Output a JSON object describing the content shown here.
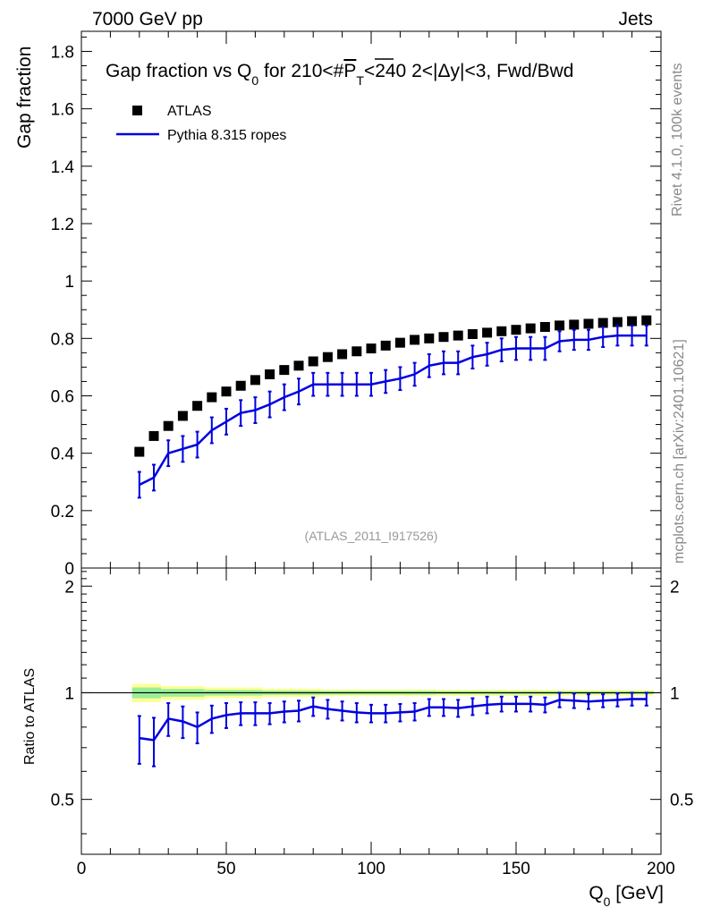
{
  "header": {
    "energy_label": "7000 GeV pp",
    "process_label": "Jets"
  },
  "side_labels": {
    "rivet": "Rivet 4.1.0,  100k events",
    "mcplots": "mcplots.cern.ch [arXiv:2401.10621]"
  },
  "chart_data": [
    {
      "type": "scatter",
      "panel": "main",
      "title_parts": {
        "a": "Gap fraction vs Q",
        "a_sub": "0",
        "b": " for 210<#",
        "b_p": "P",
        "b_sub": "T",
        "c": "<240  2<|Δy|<3, Fwd/Bwd"
      },
      "ylabel": "Gap fraction",
      "analysis_tag": "(ATLAS_2011_I917526)",
      "xlim": [
        0,
        200
      ],
      "ylim": [
        0,
        1.87
      ],
      "yticks": [
        0,
        0.2,
        0.4,
        0.6,
        0.8,
        1,
        1.2,
        1.4,
        1.6,
        1.8
      ],
      "ytick_labels": [
        "0",
        "0.2",
        "0.4",
        "0.6",
        "0.8",
        "1",
        "1.2",
        "1.4",
        "1.6",
        "1.8"
      ],
      "legend": [
        {
          "name": "ATLAS",
          "style": "square-marker",
          "color": "#000000"
        },
        {
          "name": "Pythia 8.315 ropes",
          "style": "line",
          "color": "#0000e0"
        }
      ],
      "series": [
        {
          "name": "ATLAS",
          "x": [
            20,
            25,
            30,
            35,
            40,
            45,
            50,
            55,
            60,
            65,
            70,
            75,
            80,
            85,
            90,
            95,
            100,
            105,
            110,
            115,
            120,
            125,
            130,
            135,
            140,
            145,
            150,
            155,
            160,
            165,
            170,
            175,
            180,
            185,
            190,
            195
          ],
          "y": [
            0.405,
            0.46,
            0.495,
            0.53,
            0.565,
            0.595,
            0.615,
            0.635,
            0.655,
            0.675,
            0.69,
            0.705,
            0.72,
            0.735,
            0.745,
            0.755,
            0.765,
            0.775,
            0.785,
            0.795,
            0.8,
            0.805,
            0.81,
            0.815,
            0.82,
            0.825,
            0.83,
            0.835,
            0.84,
            0.845,
            0.848,
            0.851,
            0.854,
            0.857,
            0.86,
            0.863
          ]
        },
        {
          "name": "Pythia 8.315 ropes",
          "bin_edges": [
            17.5,
            22.5,
            27.5,
            32.5,
            37.5,
            42.5,
            47.5,
            52.5,
            57.5,
            62.5,
            67.5,
            72.5,
            77.5,
            82.5,
            87.5,
            92.5,
            97.5,
            102.5,
            107.5,
            112.5,
            117.5,
            122.5,
            127.5,
            132.5,
            137.5,
            142.5,
            147.5,
            152.5,
            157.5,
            162.5,
            167.5,
            172.5,
            177.5,
            182.5,
            187.5,
            192.5,
            197.5
          ],
          "x": [
            20,
            25,
            30,
            35,
            40,
            45,
            50,
            55,
            60,
            65,
            70,
            75,
            80,
            85,
            90,
            95,
            100,
            105,
            110,
            115,
            120,
            125,
            130,
            135,
            140,
            145,
            150,
            155,
            160,
            165,
            170,
            175,
            180,
            185,
            190,
            195
          ],
          "y": [
            0.29,
            0.315,
            0.4,
            0.415,
            0.43,
            0.48,
            0.51,
            0.54,
            0.55,
            0.57,
            0.595,
            0.615,
            0.64,
            0.64,
            0.64,
            0.64,
            0.64,
            0.65,
            0.66,
            0.675,
            0.705,
            0.715,
            0.715,
            0.735,
            0.745,
            0.76,
            0.765,
            0.765,
            0.765,
            0.79,
            0.795,
            0.795,
            0.805,
            0.81,
            0.81,
            0.81
          ],
          "yerr": [
            0.045,
            0.045,
            0.045,
            0.045,
            0.045,
            0.045,
            0.045,
            0.045,
            0.045,
            0.045,
            0.045,
            0.045,
            0.04,
            0.04,
            0.04,
            0.04,
            0.04,
            0.04,
            0.04,
            0.04,
            0.04,
            0.04,
            0.04,
            0.04,
            0.04,
            0.04,
            0.04,
            0.04,
            0.04,
            0.035,
            0.035,
            0.035,
            0.035,
            0.035,
            0.035,
            0.035
          ]
        }
      ]
    },
    {
      "type": "line",
      "panel": "ratio",
      "ylabel": "Ratio to ATLAS",
      "xlabel_main": "Q",
      "xlabel_sub": "0",
      "xlabel_unit": " [GeV]",
      "xlim": [
        0,
        200
      ],
      "ylim": [
        0.35,
        2.25
      ],
      "xticks": [
        0,
        50,
        100,
        150,
        200
      ],
      "xtick_labels": [
        "0",
        "50",
        "100",
        "150",
        "200"
      ],
      "yticks": [
        0.5,
        1,
        2
      ],
      "ytick_labels": [
        "0.5",
        "1",
        "2"
      ],
      "reference_line": 1,
      "band_edges": [
        17.5,
        27.5,
        42.5,
        62.5,
        82.5,
        122.5,
        162.5,
        197.5
      ],
      "band_yellow_half": [
        0.06,
        0.045,
        0.035,
        0.028,
        0.022,
        0.02,
        0.018
      ],
      "band_green_half": [
        0.035,
        0.025,
        0.018,
        0.014,
        0.012,
        0.01,
        0.009
      ],
      "band_colors": {
        "yellow": "#ffff99",
        "green": "#99ee99"
      },
      "series": [
        {
          "name": "Pythia 8.315 ropes",
          "x": [
            20,
            25,
            30,
            35,
            40,
            45,
            50,
            55,
            60,
            65,
            70,
            75,
            80,
            85,
            90,
            95,
            100,
            105,
            110,
            115,
            120,
            125,
            130,
            135,
            140,
            145,
            150,
            155,
            160,
            165,
            170,
            175,
            180,
            185,
            190,
            195
          ],
          "y": [
            0.745,
            0.735,
            0.845,
            0.83,
            0.8,
            0.845,
            0.865,
            0.875,
            0.875,
            0.875,
            0.885,
            0.89,
            0.915,
            0.9,
            0.89,
            0.88,
            0.875,
            0.875,
            0.88,
            0.885,
            0.91,
            0.91,
            0.905,
            0.915,
            0.925,
            0.93,
            0.93,
            0.93,
            0.925,
            0.955,
            0.95,
            0.945,
            0.95,
            0.955,
            0.96,
            0.96
          ],
          "yerr": [
            0.115,
            0.115,
            0.09,
            0.085,
            0.08,
            0.075,
            0.07,
            0.065,
            0.065,
            0.06,
            0.06,
            0.06,
            0.055,
            0.055,
            0.055,
            0.055,
            0.05,
            0.05,
            0.05,
            0.05,
            0.05,
            0.05,
            0.05,
            0.05,
            0.05,
            0.045,
            0.045,
            0.045,
            0.045,
            0.045,
            0.045,
            0.045,
            0.04,
            0.04,
            0.04,
            0.04
          ]
        }
      ]
    }
  ]
}
